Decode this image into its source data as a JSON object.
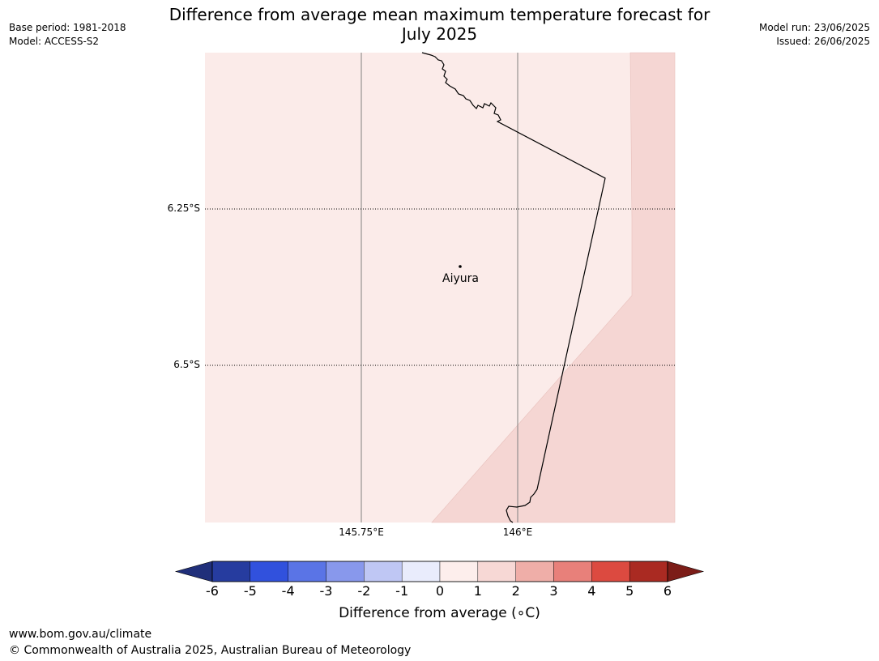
{
  "header": {
    "title_line1": "Difference from average mean maximum temperature forecast for",
    "title_line2": "July 2025",
    "base_period": "Base period: 1981-2018",
    "model": "Model: ACCESS-S2",
    "model_run": "Model run: 23/06/2025",
    "issued": "Issued: 26/06/2025"
  },
  "map": {
    "lat_labels": [
      "6.25°S",
      "6.5°S"
    ],
    "lon_labels": [
      "145.75°E",
      "146°E"
    ],
    "place": {
      "name": "Aiyura"
    },
    "fill_colors": {
      "light": "#fbebe9",
      "medium": "#f5d6d3"
    }
  },
  "colorbar": {
    "ticks": [
      "-6",
      "-5",
      "-4",
      "-3",
      "-2",
      "-1",
      "0",
      "1",
      "2",
      "3",
      "4",
      "5",
      "6"
    ],
    "colors": [
      "#263c9f",
      "#3151dd",
      "#5a74e6",
      "#8898ec",
      "#bfc7f4",
      "#e9ecfc",
      "#fdeeec",
      "#f7d8d5",
      "#efaea8",
      "#e8807a",
      "#dc4a40",
      "#aa2a22"
    ],
    "under_color": "#202f7a",
    "over_color": "#7c1d18",
    "label": "Difference from average (∘C)"
  },
  "footer": {
    "url": "www.bom.gov.au/climate",
    "copyright": "© Commonwealth of Australia 2025, Australian Bureau of Meteorology"
  }
}
